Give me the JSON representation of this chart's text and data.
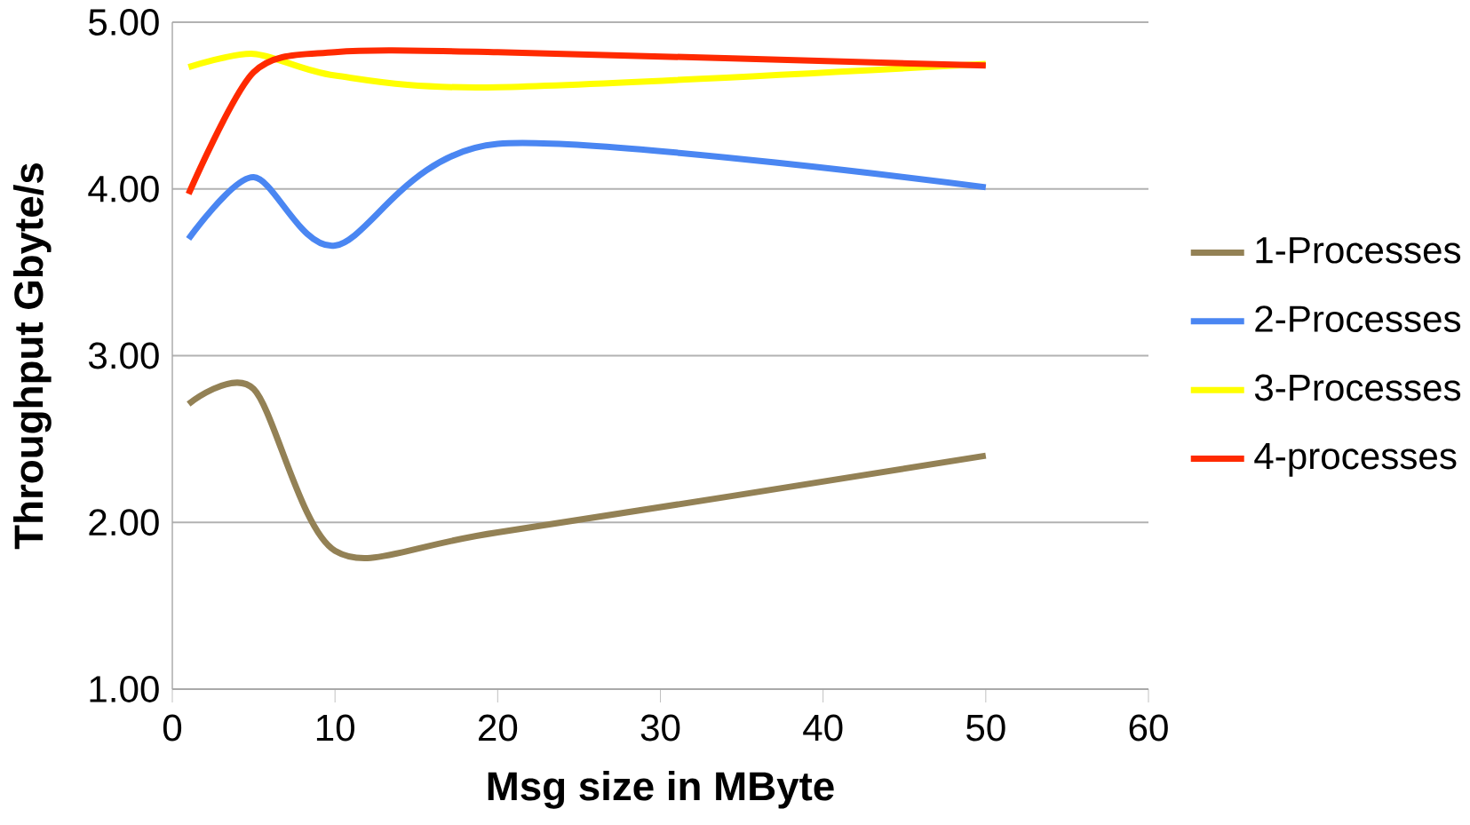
{
  "chart_data": {
    "type": "line",
    "xlabel": "Msg size in MByte",
    "ylabel": "Throughput  Gbyte/s",
    "x": [
      1,
      5,
      10,
      20,
      50
    ],
    "series": [
      {
        "name": "1-Processes",
        "color": "#938155",
        "values": [
          2.71,
          2.8,
          1.83,
          1.94,
          2.4
        ]
      },
      {
        "name": "2-Processes",
        "color": "#4a86f2",
        "values": [
          3.7,
          4.07,
          3.66,
          4.27,
          4.01
        ]
      },
      {
        "name": "3-Processes",
        "color": "#ffff00",
        "values": [
          4.73,
          4.81,
          4.68,
          4.61,
          4.75
        ]
      },
      {
        "name": "4-processes",
        "color": "#ff2a00",
        "values": [
          3.97,
          4.7,
          4.82,
          4.82,
          4.74
        ]
      }
    ],
    "xlim": [
      0,
      60
    ],
    "xticks": [
      0,
      10,
      20,
      30,
      40,
      50,
      60
    ],
    "ylim": [
      1,
      5
    ],
    "yticks": [
      {
        "value": 1,
        "label": "1.00"
      },
      {
        "value": 2,
        "label": "2.00"
      },
      {
        "value": 3,
        "label": "3.00"
      },
      {
        "value": 4,
        "label": "4.00"
      },
      {
        "value": 5,
        "label": "5.00"
      }
    ],
    "grid": "y",
    "legend": "right",
    "marker": "none",
    "line_style": "solid"
  }
}
